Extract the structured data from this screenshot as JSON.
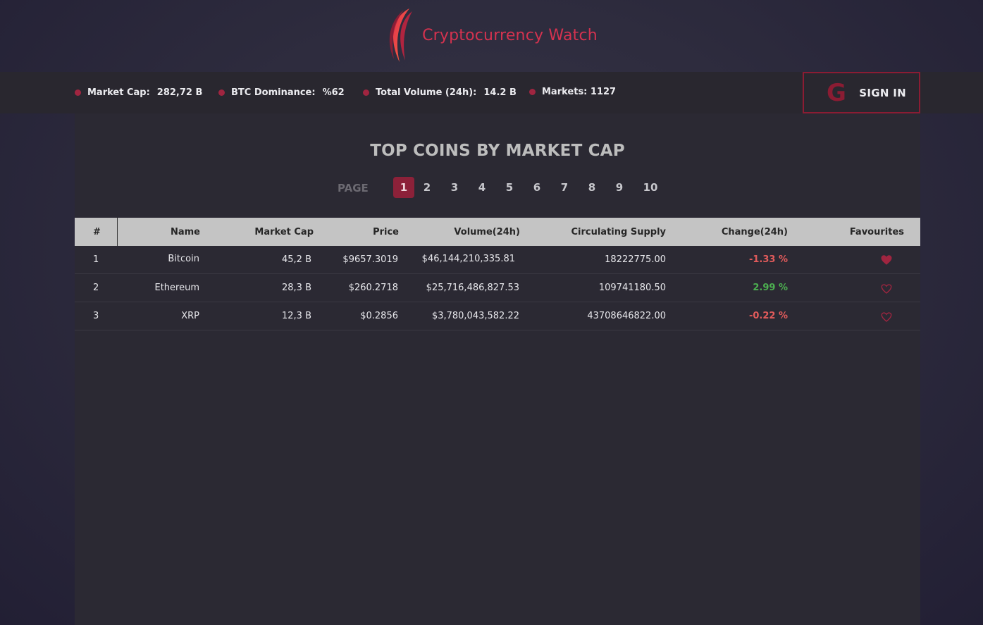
{
  "header": {
    "brand": "Cryptocurrency Watch",
    "logo_icon": "crescent-logo-icon"
  },
  "stats": {
    "market_cap_label": "Market Cap:",
    "market_cap_value": "282,72 B",
    "btc_dom_label": "BTC Dominance:",
    "btc_dom_value": "%62",
    "volume_label": "Total Volume (24h):",
    "volume_value": "14.2 B",
    "markets_label": "Markets: 1127"
  },
  "signin": {
    "label": "SIGN IN",
    "icon": "google-icon",
    "icon_glyph": "G"
  },
  "main": {
    "title": "TOP COINS BY MARKET CAP",
    "page_label": "PAGE",
    "pages": [
      "1",
      "2",
      "3",
      "4",
      "5",
      "6",
      "7",
      "8",
      "9",
      "10"
    ],
    "active_page": "1"
  },
  "table": {
    "headers": {
      "rank": "#",
      "name": "Name",
      "market_cap": "Market Cap",
      "price": "Price",
      "volume": "Volume(24h)",
      "supply": "Circulating Supply",
      "change": "Change(24h)",
      "favourites": "Favourites"
    },
    "rows": [
      {
        "rank": "1",
        "name": "Bitcoin",
        "market_cap": "45,2 B",
        "price": "$9657.3019",
        "volume": "$46,144,210,335.81",
        "supply": "18222775.00",
        "change": "-1.33 %",
        "favourite": true
      },
      {
        "rank": "2",
        "name": "Ethereum",
        "market_cap": "28,3 B",
        "price": "$260.2718",
        "volume": "$25,716,486,827.53",
        "supply": "109741180.50",
        "change": "2.99 %",
        "favourite": false
      },
      {
        "rank": "3",
        "name": "XRP",
        "market_cap": "12,3 B",
        "price": "$0.2856",
        "volume": "$3,780,043,582.22",
        "supply": "43708646822.00",
        "change": "-0.22 %",
        "favourite": false
      }
    ]
  },
  "colors": {
    "accent": "#a02540",
    "negative": "#e25b5b",
    "positive": "#4caf50"
  }
}
